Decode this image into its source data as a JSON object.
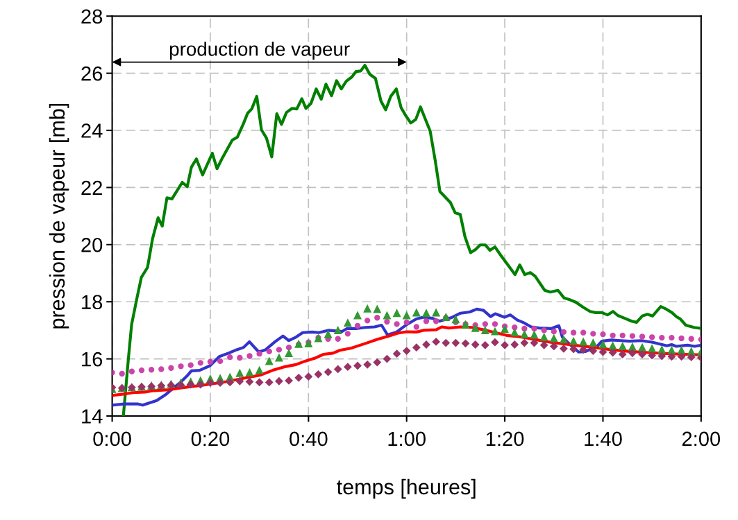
{
  "chart_data": {
    "type": "line",
    "xlabel": "temps [heures]",
    "ylabel": "pression de vapeur [mb]",
    "xlim": [
      0,
      2
    ],
    "ylim": [
      14,
      28
    ],
    "xticks": [
      {
        "value": 0,
        "label": "0:00"
      },
      {
        "value": 0.3333,
        "label": "0:20"
      },
      {
        "value": 0.6667,
        "label": "0:40"
      },
      {
        "value": 1,
        "label": "1:00"
      },
      {
        "value": 1.3333,
        "label": "1:20"
      },
      {
        "value": 1.6667,
        "label": "1:40"
      },
      {
        "value": 2,
        "label": "2:00"
      }
    ],
    "yticks": [
      14,
      16,
      18,
      20,
      22,
      24,
      26,
      28
    ],
    "grid": true,
    "annotations": [
      "production de vapeur"
    ],
    "x": [
      0,
      0.0333,
      0.0667,
      0.1,
      0.1333,
      0.1667,
      0.2,
      0.2333,
      0.2667,
      0.3,
      0.3333,
      0.3667,
      0.4,
      0.4333,
      0.4667,
      0.5,
      0.5333,
      0.5667,
      0.6,
      0.6333,
      0.6667,
      0.7,
      0.7333,
      0.7667,
      0.8,
      0.8333,
      0.8667,
      0.9,
      0.9333,
      0.9667,
      1,
      1.0333,
      1.0667,
      1.1,
      1.1333,
      1.1667,
      1.2,
      1.2333,
      1.2667,
      1.3,
      1.3333,
      1.3667,
      1.4,
      1.4333,
      1.4667,
      1.5,
      1.5333,
      1.5667,
      1.6,
      1.6333,
      1.6667,
      1.7,
      1.7333,
      1.7667,
      1.8,
      1.8333,
      1.8667,
      1.9,
      1.9333,
      1.9667,
      2
    ],
    "series": [
      {
        "color": "#008000",
        "marker": "none",
        "x": [
          0.038,
          0.055,
          0.066,
          0.085,
          0.099,
          0.12,
          0.137,
          0.156,
          0.17,
          0.186,
          0.203,
          0.238,
          0.255,
          0.269,
          0.286,
          0.307,
          0.34,
          0.356,
          0.375,
          0.408,
          0.425,
          0.446,
          0.46,
          0.474,
          0.491,
          0.507,
          0.524,
          0.542,
          0.559,
          0.575,
          0.592,
          0.611,
          0.627,
          0.644,
          0.658,
          0.675,
          0.693,
          0.71,
          0.726,
          0.745,
          0.762,
          0.778,
          0.795,
          0.814,
          0.828,
          0.844,
          0.858,
          0.875,
          0.894,
          0.913,
          0.929,
          0.946,
          0.965,
          0.981,
          0.998,
          1.014,
          1.031,
          1.047,
          1.08,
          1.097,
          1.113,
          1.149,
          1.165,
          1.182,
          1.198,
          1.217,
          1.233,
          1.25,
          1.267,
          1.283,
          1.3,
          1.318,
          1.368,
          1.384,
          1.401,
          1.42,
          1.436,
          1.469,
          1.488,
          1.514,
          1.535,
          1.552,
          1.575,
          1.599,
          1.623,
          1.642,
          1.663,
          1.682,
          1.701,
          1.717,
          1.741,
          1.764,
          1.781,
          1.8,
          1.818,
          1.835,
          1.863,
          1.882,
          1.901,
          1.917,
          1.929,
          1.948,
          1.976,
          2
        ],
        "values": [
          14.0,
          16.0,
          17.2,
          18.17,
          18.85,
          19.2,
          20.2,
          20.94,
          20.65,
          21.64,
          21.6,
          22.18,
          22.03,
          22.71,
          23.0,
          22.44,
          23.2,
          22.66,
          23.05,
          23.66,
          23.76,
          24.24,
          24.6,
          24.75,
          25.19,
          24.02,
          23.73,
          23.07,
          24.58,
          24.21,
          24.63,
          24.77,
          24.75,
          25.11,
          24.77,
          24.94,
          25.45,
          25.09,
          25.62,
          25.21,
          25.74,
          25.45,
          25.72,
          25.87,
          26.06,
          26.08,
          26.28,
          25.96,
          25.82,
          25.02,
          24.72,
          25.19,
          25.45,
          24.8,
          24.5,
          24.26,
          24.38,
          24.82,
          23.97,
          22.95,
          21.86,
          21.47,
          21.11,
          21.06,
          20.28,
          19.72,
          19.82,
          19.99,
          19.99,
          19.8,
          19.92,
          19.65,
          18.95,
          19.29,
          18.95,
          19.02,
          18.9,
          18.4,
          18.34,
          18.4,
          18.13,
          18.08,
          17.98,
          17.81,
          17.66,
          17.62,
          17.62,
          17.54,
          17.66,
          17.52,
          17.42,
          17.32,
          17.28,
          17.5,
          17.56,
          17.5,
          17.83,
          17.74,
          17.62,
          17.47,
          17.4,
          17.18,
          17.1,
          17.07
        ]
      },
      {
        "color": "#3333cc",
        "marker": "none",
        "x": [
          0,
          0.041,
          0.088,
          0.104,
          0.151,
          0.183,
          0.206,
          0.23,
          0.254,
          0.269,
          0.297,
          0.332,
          0.364,
          0.395,
          0.423,
          0.446,
          0.466,
          0.498,
          0.521,
          0.553,
          0.58,
          0.6,
          0.624,
          0.647,
          0.679,
          0.702,
          0.734,
          0.781,
          0.797,
          0.828,
          0.86,
          0.891,
          0.915,
          0.935,
          0.966,
          1.0,
          1.033,
          1.057,
          1.088,
          1.112,
          1.151,
          1.183,
          1.214,
          1.238,
          1.261,
          1.285,
          1.301,
          1.332,
          1.352,
          1.376,
          1.399,
          1.423,
          1.45,
          1.49,
          1.517,
          1.529,
          1.553,
          1.584,
          1.608,
          1.647,
          1.663,
          1.694,
          1.726,
          1.757,
          1.797,
          1.836,
          1.884,
          1.9,
          1.915,
          1.954,
          1.978,
          2
        ],
        "values": [
          14.38,
          14.42,
          14.42,
          14.38,
          14.54,
          14.76,
          14.96,
          15.16,
          15.4,
          15.58,
          15.6,
          15.76,
          16.08,
          16.2,
          16.32,
          16.4,
          16.6,
          16.24,
          16.32,
          16.6,
          16.8,
          16.64,
          16.76,
          16.92,
          16.94,
          16.92,
          17.0,
          16.96,
          17.06,
          17.06,
          17.1,
          17.12,
          17.18,
          16.84,
          16.94,
          17.2,
          17.4,
          17.46,
          17.42,
          17.32,
          17.44,
          17.6,
          17.64,
          17.74,
          17.7,
          17.48,
          17.58,
          17.46,
          17.54,
          17.36,
          17.26,
          17.12,
          17.08,
          17.06,
          17.16,
          16.76,
          16.52,
          16.24,
          16.26,
          16.44,
          16.62,
          16.66,
          16.64,
          16.62,
          16.64,
          16.58,
          16.46,
          16.5,
          16.44,
          16.48,
          16.44,
          16.48
        ]
      },
      {
        "color": "#ff0000",
        "marker": "none",
        "x": [
          0,
          0.033,
          0.072,
          0.112,
          0.135,
          0.191,
          0.23,
          0.309,
          0.387,
          0.466,
          0.506,
          0.545,
          0.584,
          0.624,
          0.655,
          0.687,
          0.718,
          0.75,
          0.773,
          0.813,
          0.86,
          0.9,
          0.939,
          0.97,
          1.0,
          1.033,
          1.057,
          1.1,
          1.12,
          1.143,
          1.183,
          1.222,
          1.261,
          1.301,
          1.34,
          1.38,
          1.435,
          1.49,
          1.537,
          1.584,
          1.639,
          1.694,
          1.757,
          1.82,
          1.891,
          1.946,
          2
        ],
        "values": [
          14.72,
          14.76,
          14.82,
          14.84,
          14.88,
          14.92,
          14.98,
          15.08,
          15.2,
          15.36,
          15.44,
          15.6,
          15.72,
          15.8,
          15.92,
          16.02,
          16.16,
          16.2,
          16.3,
          16.38,
          16.54,
          16.68,
          16.8,
          16.9,
          16.95,
          16.94,
          17.0,
          17.02,
          17.12,
          17.08,
          17.12,
          17.1,
          17.02,
          16.92,
          16.82,
          16.78,
          16.68,
          16.58,
          16.52,
          16.46,
          16.4,
          16.32,
          16.26,
          16.22,
          16.18,
          16.16,
          16.14
        ]
      },
      {
        "type": "scatter",
        "color": "#cc44aa",
        "marker": "circle",
        "values": [
          15.52,
          15.48,
          15.56,
          15.6,
          15.62,
          15.64,
          15.68,
          15.74,
          15.78,
          15.86,
          15.9,
          15.92,
          16.06,
          16.04,
          16.1,
          16.18,
          16.26,
          16.32,
          16.4,
          16.5,
          16.58,
          16.74,
          16.7,
          16.7,
          16.88,
          17.16,
          17.34,
          17.44,
          17.3,
          17.22,
          17.28,
          17.12,
          17.32,
          17.32,
          17.44,
          17.28,
          17.22,
          17.18,
          17.22,
          17.22,
          17.14,
          17.1,
          17.06,
          17.06,
          17.0,
          16.96,
          16.94,
          16.92,
          16.92,
          16.88,
          16.86,
          16.82,
          16.82,
          16.8,
          16.78,
          16.76,
          16.74,
          16.74,
          16.72,
          16.7,
          16.68
        ]
      },
      {
        "type": "scatter",
        "color": "#339933",
        "marker": "triangle",
        "values": [
          14.94,
          14.98,
          15.0,
          15.02,
          15.06,
          15.08,
          15.12,
          15.16,
          15.2,
          15.24,
          15.3,
          15.32,
          15.36,
          15.5,
          15.52,
          15.6,
          15.92,
          16.04,
          16.2,
          16.52,
          16.54,
          16.72,
          16.86,
          17.0,
          17.26,
          17.52,
          17.76,
          17.74,
          17.52,
          17.6,
          17.52,
          17.62,
          17.6,
          17.62,
          17.46,
          17.38,
          17.2,
          17.08,
          17.0,
          16.96,
          17.04,
          16.92,
          16.86,
          16.84,
          16.76,
          16.72,
          16.68,
          16.62,
          16.6,
          16.56,
          16.5,
          16.46,
          16.44,
          16.42,
          16.4,
          16.36,
          16.32,
          16.3,
          16.3,
          16.26,
          16.24
        ]
      },
      {
        "type": "scatter",
        "color": "#993366",
        "marker": "diamond",
        "values": [
          15.0,
          14.98,
          15.0,
          15.02,
          15.04,
          15.06,
          15.08,
          15.08,
          15.1,
          15.1,
          15.16,
          15.16,
          15.18,
          15.22,
          15.2,
          15.18,
          15.18,
          15.22,
          15.24,
          15.34,
          15.38,
          15.46,
          15.54,
          15.64,
          15.72,
          15.76,
          15.8,
          15.88,
          16.0,
          16.18,
          16.28,
          16.4,
          16.5,
          16.6,
          16.56,
          16.56,
          16.54,
          16.5,
          16.48,
          16.58,
          16.48,
          16.5,
          16.56,
          16.56,
          16.48,
          16.44,
          16.36,
          16.34,
          16.32,
          16.28,
          16.24,
          16.22,
          16.16,
          16.2,
          16.16,
          16.12,
          16.1,
          16.08,
          16.08,
          16.06,
          16.04
        ]
      }
    ]
  }
}
